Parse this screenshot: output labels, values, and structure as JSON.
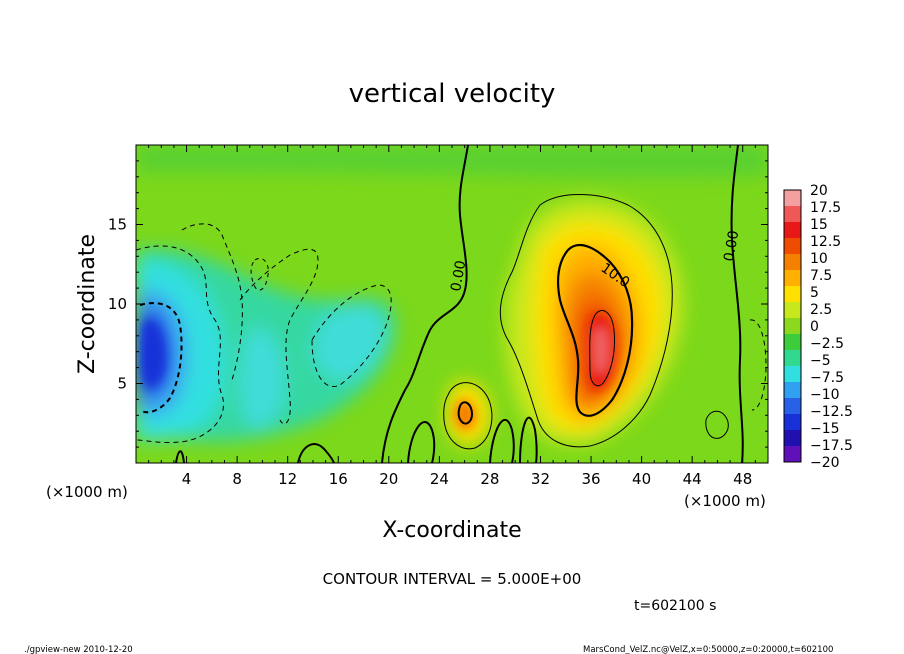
{
  "chart_data": {
    "type": "heatmap",
    "title": "vertical velocity",
    "xlabel": "X-coordinate",
    "ylabel": "Z-coordinate",
    "xunit": "(×1000 m)",
    "yunit": "(×1000 m)",
    "xlim": [
      0,
      50
    ],
    "ylim": [
      0,
      20
    ],
    "xticks": [
      "4",
      "8",
      "12",
      "16",
      "20",
      "24",
      "28",
      "32",
      "36",
      "40",
      "44",
      "48"
    ],
    "yticks": [
      "5",
      "10",
      "15"
    ],
    "colorbar": {
      "labels": [
        "20",
        "17.5",
        "15",
        "12.5",
        "10",
        "7.5",
        "5",
        "2.5",
        "0",
        "−2.5",
        "−5",
        "−7.5",
        "−10",
        "−12.5",
        "−15",
        "−17.5",
        "−20"
      ],
      "colors": [
        "#f4a0a0",
        "#f05858",
        "#e81818",
        "#f04c00",
        "#f58000",
        "#ffb000",
        "#ffe000",
        "#c8e81e",
        "#8cd81e",
        "#3ccc3c",
        "#30d890",
        "#30e0e0",
        "#30a0f0",
        "#2860e8",
        "#1830d8",
        "#2010b0",
        "#6010b8"
      ]
    },
    "contour_labels": [
      "0.00",
      "10.0",
      "0.00"
    ],
    "contour_interval_text": "CONTOUR INTERVAL = 5.000E+00",
    "time_text": "t=602100 s",
    "features": [
      {
        "name": "updraft core",
        "x_center": 36.5,
        "z_center": 7.5,
        "max": 20
      },
      {
        "name": "downdraft core",
        "x_center": 2.5,
        "z_center": 6.5,
        "min": -12.5
      },
      {
        "name": "secondary updraft",
        "x_center": 26,
        "z_center": 3,
        "max": 12.5
      }
    ]
  },
  "footer": {
    "left": "./gpview-new   2010-12-20",
    "right": "MarsCond_VelZ.nc@VelZ,x=0:50000,z=0:20000,t=602100"
  }
}
